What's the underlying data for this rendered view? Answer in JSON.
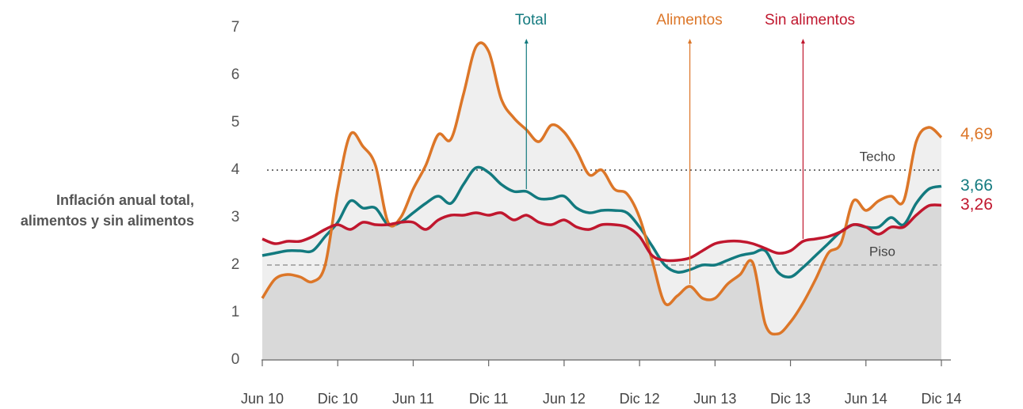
{
  "chart_data": {
    "type": "line",
    "y_axis_label": "Inflación anual total, alimentos y sin alimentos",
    "categories": [
      "Jun 10",
      null,
      null,
      null,
      null,
      null,
      "Dic 10",
      null,
      null,
      null,
      null,
      null,
      "Jun 11",
      null,
      null,
      null,
      null,
      null,
      "Dic 11",
      null,
      null,
      null,
      null,
      null,
      "Jun 12",
      null,
      null,
      null,
      null,
      null,
      "Dic 12",
      null,
      null,
      null,
      null,
      null,
      "Jun 13",
      null,
      null,
      null,
      null,
      null,
      "Dic 13",
      null,
      null,
      null,
      null,
      null,
      "Jun 14",
      null,
      null,
      null,
      null,
      null,
      "Dic 14"
    ],
    "series": [
      {
        "name": "Total",
        "color": "#137a7f",
        "values": [
          2.2,
          2.25,
          2.3,
          2.3,
          2.3,
          2.6,
          2.9,
          3.35,
          3.2,
          3.2,
          2.85,
          2.9,
          3.1,
          3.3,
          3.45,
          3.3,
          3.7,
          4.05,
          3.95,
          3.7,
          3.55,
          3.55,
          3.4,
          3.4,
          3.45,
          3.2,
          3.1,
          3.15,
          3.15,
          3.1,
          2.8,
          2.4,
          2.0,
          1.85,
          1.9,
          2.0,
          2.0,
          2.1,
          2.2,
          2.25,
          2.3,
          1.85,
          1.75,
          1.95,
          2.2,
          2.45,
          2.7,
          2.85,
          2.8,
          2.8,
          3.0,
          2.85,
          3.3,
          3.6,
          3.66
        ],
        "value_labels": [
          null,
          null,
          null,
          null,
          null,
          null,
          null,
          null,
          null,
          null,
          null,
          null,
          null,
          null,
          null,
          null,
          null,
          null,
          null,
          null,
          null,
          null,
          null,
          null,
          null,
          null,
          null,
          null,
          null,
          null,
          null,
          null,
          null,
          null,
          null,
          null,
          null,
          null,
          null,
          null,
          null,
          null,
          null,
          null,
          null,
          null,
          null,
          null,
          null,
          null,
          null,
          null,
          null,
          null,
          "3,66"
        ]
      },
      {
        "name": "Alimentos",
        "color": "#dc7628",
        "values": [
          1.3,
          1.7,
          1.8,
          1.75,
          1.65,
          2.0,
          3.6,
          4.75,
          4.5,
          4.1,
          2.9,
          3.0,
          3.6,
          4.1,
          4.75,
          4.65,
          5.6,
          6.6,
          6.5,
          5.5,
          5.1,
          4.85,
          4.6,
          4.95,
          4.8,
          4.4,
          3.9,
          4.0,
          3.6,
          3.5,
          3.0,
          2.1,
          1.2,
          1.35,
          1.55,
          1.3,
          1.3,
          1.6,
          1.8,
          2.05,
          0.75,
          0.55,
          0.8,
          1.2,
          1.7,
          2.25,
          2.45,
          3.35,
          3.15,
          3.35,
          3.45,
          3.35,
          4.6,
          4.9,
          4.69
        ],
        "value_labels": [
          null,
          null,
          null,
          null,
          null,
          null,
          null,
          null,
          null,
          null,
          null,
          null,
          null,
          null,
          null,
          null,
          null,
          null,
          null,
          null,
          null,
          null,
          null,
          null,
          null,
          null,
          null,
          null,
          null,
          null,
          null,
          null,
          null,
          null,
          null,
          null,
          null,
          null,
          null,
          null,
          null,
          null,
          null,
          null,
          null,
          null,
          null,
          null,
          null,
          null,
          null,
          null,
          null,
          null,
          "4,69"
        ]
      },
      {
        "name": "Sin alimentos",
        "color": "#c0172e",
        "values": [
          2.55,
          2.45,
          2.5,
          2.5,
          2.6,
          2.75,
          2.85,
          2.75,
          2.9,
          2.85,
          2.85,
          2.9,
          2.9,
          2.75,
          2.95,
          3.05,
          3.05,
          3.1,
          3.05,
          3.1,
          2.95,
          3.05,
          2.9,
          2.85,
          2.95,
          2.8,
          2.75,
          2.85,
          2.85,
          2.8,
          2.6,
          2.2,
          2.1,
          2.1,
          2.15,
          2.3,
          2.45,
          2.5,
          2.5,
          2.45,
          2.35,
          2.25,
          2.3,
          2.5,
          2.55,
          2.6,
          2.7,
          2.85,
          2.8,
          2.65,
          2.8,
          2.8,
          3.05,
          3.25,
          3.26
        ],
        "value_labels": [
          null,
          null,
          null,
          null,
          null,
          null,
          null,
          null,
          null,
          null,
          null,
          null,
          null,
          null,
          null,
          null,
          null,
          null,
          null,
          null,
          null,
          null,
          null,
          null,
          null,
          null,
          null,
          null,
          null,
          null,
          null,
          null,
          null,
          null,
          null,
          null,
          null,
          null,
          null,
          null,
          null,
          null,
          null,
          null,
          null,
          null,
          null,
          null,
          null,
          null,
          null,
          null,
          null,
          null,
          "3,26"
        ]
      }
    ],
    "ylim": [
      0,
      7
    ],
    "yticks": [
      0,
      1,
      2,
      3,
      4,
      5,
      6,
      7
    ],
    "reference_lines": [
      {
        "value": 4,
        "label": "Techo",
        "style": "dotted"
      },
      {
        "value": 2,
        "label": "Piso",
        "style": "dashed"
      }
    ]
  }
}
